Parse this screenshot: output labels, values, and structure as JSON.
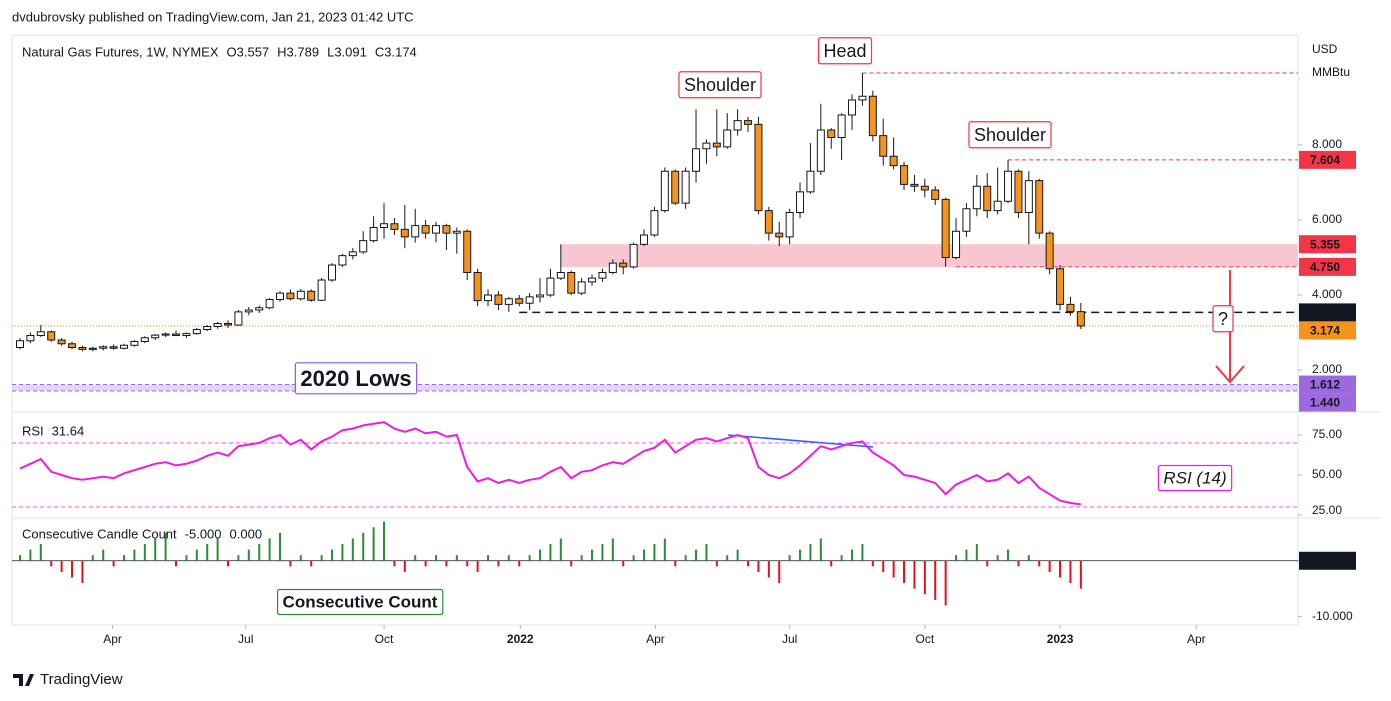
{
  "attribution": "dvdubrovsky published on TradingView.com, Jan 21, 2023 01:42 UTC",
  "footer": "TradingView",
  "chart_data": [
    {
      "type": "candlestick",
      "title": "Natural Gas Futures, 1W, NYMEX",
      "ohlc_labels": [
        "O3.557",
        "H3.789",
        "L3.091",
        "C3.174"
      ],
      "y_axis_label": [
        "USD",
        "MMBtu"
      ],
      "open": [
        2.6,
        2.78,
        2.92,
        3.02,
        2.8,
        2.7,
        2.6,
        2.55,
        2.58,
        2.62,
        2.58,
        2.66,
        2.76,
        2.86,
        2.93,
        2.96,
        2.92,
        2.97,
        3.08,
        3.16,
        3.24,
        3.2,
        3.55,
        3.6,
        3.66,
        3.88,
        4.05,
        3.9,
        4.1,
        3.86,
        4.4,
        4.8,
        5.05,
        5.15,
        5.45,
        5.8,
        5.9,
        5.75,
        5.55,
        5.85,
        5.65,
        5.85,
        5.65,
        5.7,
        4.6,
        3.85,
        4.0,
        3.75,
        3.9,
        3.78,
        3.95,
        4.0,
        4.45,
        4.6,
        4.05,
        4.35,
        4.45,
        4.6,
        4.85,
        4.75,
        5.35,
        5.6,
        6.25,
        7.3,
        6.45,
        7.3,
        7.9,
        8.05,
        7.95,
        8.4,
        8.65,
        8.55,
        6.25,
        5.65,
        5.55,
        6.2,
        6.75,
        7.3,
        8.4,
        8.2,
        8.8,
        9.2,
        9.3,
        8.25,
        7.7,
        7.45,
        6.95,
        6.9,
        6.8,
        6.55,
        5.0,
        5.7,
        6.3,
        6.9,
        6.25,
        6.5,
        7.3,
        6.2,
        7.05,
        5.65,
        4.7,
        3.75,
        3.557
      ],
      "high": [
        2.85,
        3.0,
        3.2,
        3.05,
        2.85,
        2.75,
        2.65,
        2.62,
        2.66,
        2.68,
        2.7,
        2.8,
        2.9,
        2.96,
        3.0,
        3.05,
        3.0,
        3.12,
        3.2,
        3.28,
        3.32,
        3.6,
        3.68,
        3.72,
        3.92,
        4.1,
        4.15,
        4.16,
        4.15,
        4.45,
        4.85,
        5.1,
        5.25,
        5.7,
        6.1,
        6.45,
        6.05,
        6.4,
        6.3,
        6.0,
        5.95,
        5.9,
        5.8,
        5.75,
        4.7,
        4.15,
        4.1,
        3.95,
        4.0,
        4.05,
        4.45,
        4.7,
        5.35,
        4.65,
        4.45,
        4.55,
        4.7,
        4.95,
        4.95,
        5.4,
        5.75,
        6.35,
        7.4,
        7.35,
        7.4,
        8.95,
        8.15,
        8.95,
        8.85,
        8.95,
        8.75,
        8.75,
        6.35,
        5.95,
        6.3,
        7.0,
        8.05,
        9.1,
        8.45,
        8.85,
        9.35,
        9.92,
        9.45,
        8.7,
        8.2,
        7.55,
        7.2,
        7.1,
        6.9,
        6.6,
        6.05,
        6.45,
        7.2,
        7.25,
        7.4,
        7.6,
        7.35,
        7.3,
        7.1,
        5.7,
        4.8,
        3.95,
        3.789
      ],
      "low": [
        2.55,
        2.72,
        2.88,
        2.75,
        2.65,
        2.55,
        2.5,
        2.5,
        2.52,
        2.54,
        2.55,
        2.62,
        2.72,
        2.8,
        2.88,
        2.9,
        2.85,
        2.94,
        3.04,
        3.1,
        3.12,
        3.18,
        3.46,
        3.52,
        3.62,
        3.82,
        3.86,
        3.85,
        3.82,
        3.84,
        4.35,
        4.75,
        4.95,
        5.1,
        5.4,
        5.5,
        5.6,
        5.25,
        5.4,
        5.5,
        5.4,
        5.2,
        5.1,
        4.4,
        3.7,
        3.7,
        3.6,
        3.55,
        3.7,
        3.6,
        3.8,
        3.95,
        4.4,
        4.0,
        4.0,
        4.25,
        4.35,
        4.55,
        4.55,
        4.7,
        5.3,
        5.55,
        6.2,
        6.4,
        6.3,
        7.0,
        7.5,
        7.7,
        7.9,
        8.25,
        8.35,
        6.15,
        5.45,
        5.3,
        5.35,
        6.05,
        6.7,
        7.2,
        7.9,
        7.6,
        8.4,
        9.05,
        8.1,
        7.45,
        7.35,
        6.8,
        6.75,
        6.6,
        6.4,
        4.75,
        4.95,
        5.55,
        6.1,
        6.05,
        6.15,
        6.45,
        6.05,
        5.35,
        5.5,
        4.55,
        3.6,
        3.45,
        3.091
      ],
      "close": [
        2.78,
        2.92,
        3.02,
        2.8,
        2.7,
        2.6,
        2.55,
        2.58,
        2.62,
        2.58,
        2.66,
        2.76,
        2.86,
        2.93,
        2.96,
        2.92,
        2.97,
        3.08,
        3.16,
        3.24,
        3.2,
        3.55,
        3.6,
        3.66,
        3.88,
        4.05,
        3.9,
        4.1,
        3.86,
        4.4,
        4.8,
        5.05,
        5.15,
        5.45,
        5.8,
        5.9,
        5.75,
        5.55,
        5.85,
        5.65,
        5.85,
        5.65,
        5.7,
        4.6,
        3.85,
        4.0,
        3.75,
        3.9,
        3.78,
        3.95,
        4.0,
        4.45,
        4.6,
        4.05,
        4.35,
        4.45,
        4.6,
        4.85,
        4.75,
        5.35,
        5.6,
        6.25,
        7.3,
        6.45,
        7.3,
        7.9,
        8.05,
        7.95,
        8.4,
        8.65,
        8.55,
        6.25,
        5.65,
        5.55,
        6.2,
        6.75,
        7.3,
        8.4,
        8.2,
        8.8,
        9.2,
        9.3,
        8.25,
        7.7,
        7.45,
        6.95,
        6.9,
        6.8,
        6.55,
        5.0,
        5.7,
        6.3,
        6.9,
        6.25,
        6.5,
        7.3,
        6.2,
        7.05,
        5.65,
        4.7,
        3.75,
        3.56,
        3.174
      ],
      "up_color": "#ffffff",
      "down_color": "#f7931a",
      "xlim": [
        -0.77,
        122.88
      ],
      "xticks": [
        {
          "value": 8.9,
          "label": "Apr"
        },
        {
          "value": 21.7,
          "label": "Jul"
        },
        {
          "value": 35,
          "label": "Oct"
        },
        {
          "value": 48.1,
          "label": "2022"
        },
        {
          "value": 61.1,
          "label": "Apr"
        },
        {
          "value": 74,
          "label": "Jul"
        },
        {
          "value": 87,
          "label": "Oct"
        },
        {
          "value": 100,
          "label": "2023"
        },
        {
          "value": 113.1,
          "label": "Apr"
        }
      ],
      "ylim": [
        0.987,
        10.933
      ],
      "yticks": [
        {
          "value": 8,
          "label": "8.000"
        },
        {
          "value": 6,
          "label": "6.000"
        },
        {
          "value": 4,
          "label": "4.000"
        },
        {
          "value": 2,
          "label": "2.000"
        }
      ],
      "levels": [
        {
          "value": 9.92,
          "color": "#f23645"
        },
        {
          "value": 7.604,
          "label": "7.604",
          "color": "#f23645"
        },
        {
          "value": 5.355,
          "label": "5.355",
          "color": "#f23645"
        },
        {
          "value": 4.75,
          "label": "4.750",
          "color": "#f23645"
        },
        {
          "value": 3.536,
          "label": "3.536",
          "color": "#131722"
        },
        {
          "value": 3.174,
          "label": "3.174",
          "color": "#f7931a"
        },
        {
          "value": 1.612,
          "label": "1.612",
          "color": "#9c6ade"
        },
        {
          "value": 1.44,
          "label": "1.440",
          "color": "#9c6ade"
        }
      ],
      "zones": [
        {
          "from": 4.75,
          "to": 5.355,
          "color": "#f8c6d0"
        },
        {
          "from": 1.44,
          "to": 1.612,
          "color": "#e3d7f5"
        }
      ],
      "annotations": [
        "Head",
        "Shoulder",
        "Shoulder",
        "2020 Lows",
        "?"
      ]
    },
    {
      "type": "line",
      "title": "RSI",
      "value_label": "31.64",
      "values": [
        54,
        57,
        60,
        52,
        50,
        48,
        47,
        48,
        49,
        48,
        51,
        53,
        55,
        57,
        58,
        56,
        57,
        59,
        62,
        64,
        62,
        68,
        69,
        70,
        73,
        75,
        69,
        72,
        66,
        71,
        74,
        78,
        79,
        81,
        82,
        83,
        79,
        77,
        79,
        76,
        77,
        74,
        75,
        55,
        46,
        48,
        45,
        47,
        45,
        47,
        48,
        52,
        55,
        48,
        52,
        53,
        56,
        58,
        57,
        61,
        65,
        67,
        72,
        64,
        68,
        72,
        73,
        71,
        73,
        75,
        73,
        55,
        50,
        48,
        51,
        56,
        62,
        68,
        66,
        68,
        70,
        71,
        64,
        60,
        56,
        50,
        49,
        47,
        45,
        38,
        44,
        47,
        50,
        46,
        47,
        51,
        45,
        49,
        42,
        38,
        34,
        32.5,
        31.64
      ],
      "color": "#e91ee3",
      "ylim": [
        25,
        87.5
      ],
      "yticks": [
        {
          "value": 75,
          "label": "75.00"
        },
        {
          "value": 50,
          "label": "50.00"
        },
        {
          "value": 25,
          "label": "25.00"
        }
      ],
      "levels": [
        70,
        30
      ],
      "annotation": "RSI (14)"
    },
    {
      "type": "bar",
      "title": "Consecutive Candle Count",
      "header_values": [
        "-5.000",
        "0.000"
      ],
      "values": [
        1,
        2,
        3,
        -1,
        -2,
        -3,
        -4,
        1,
        2,
        -1,
        1,
        2,
        3,
        4,
        5,
        -1,
        1,
        2,
        3,
        4,
        -1,
        1,
        2,
        3,
        4,
        5,
        -1,
        1,
        -1,
        1,
        2,
        3,
        4,
        5,
        6,
        7,
        -1,
        -2,
        1,
        -1,
        1,
        -1,
        1,
        -1,
        -2,
        1,
        -1,
        1,
        -1,
        1,
        2,
        3,
        4,
        -1,
        1,
        2,
        3,
        4,
        -1,
        1,
        2,
        3,
        4,
        -1,
        1,
        2,
        3,
        -1,
        1,
        2,
        -1,
        -2,
        -3,
        -4,
        1,
        2,
        3,
        4,
        -1,
        1,
        2,
        3,
        -1,
        -2,
        -3,
        -4,
        -5,
        -6,
        -7,
        -8,
        1,
        2,
        3,
        -1,
        1,
        2,
        -1,
        1,
        -1,
        -2,
        -3,
        -4,
        -5
      ],
      "up_color": "#2e8b3a",
      "down_color": "#e0121b",
      "ylim": [
        -11.5,
        7.3
      ],
      "yticks": [
        {
          "value": 0,
          "label": "0.000"
        },
        {
          "value": -10,
          "label": "-10.000"
        }
      ],
      "annotation": "Consecutive Count"
    }
  ]
}
